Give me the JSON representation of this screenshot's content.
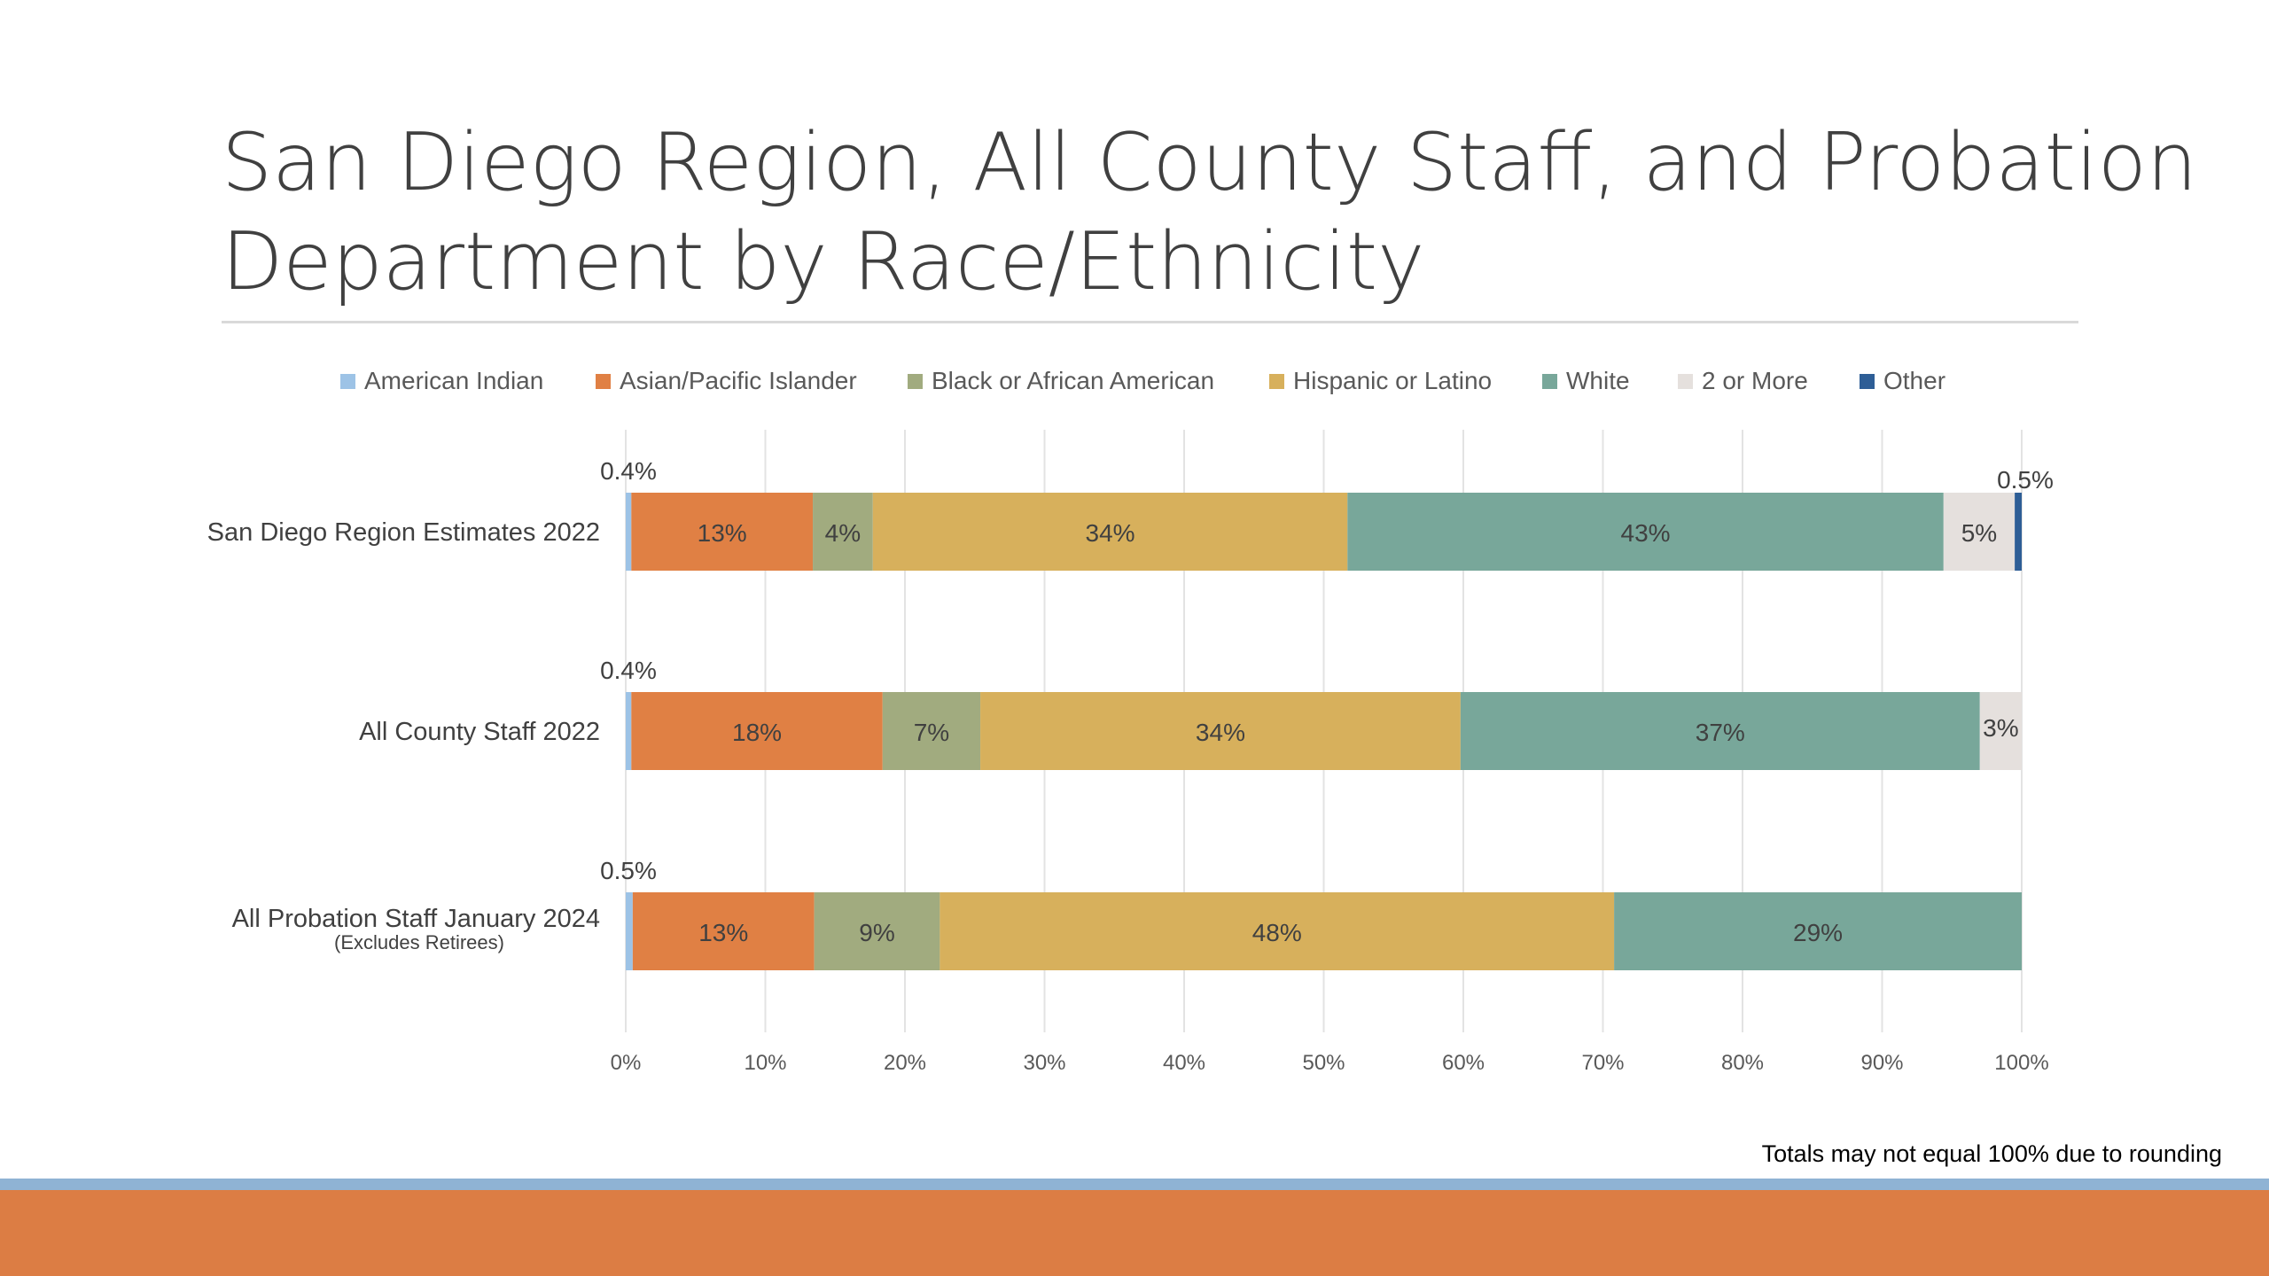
{
  "slide": {
    "title_line1": "San Diego Region, All County Staff, and Probation",
    "title_line2": "Department by Race/Ethnicity",
    "footnote": "Totals may not equal 100% due to rounding"
  },
  "theme": {
    "title_color": "#404040",
    "band_light": "#8fb3d4",
    "band_orange": "#dc7d44"
  },
  "chart_data": {
    "type": "bar",
    "orientation": "horizontal",
    "stacked": "percent",
    "title": "",
    "xlabel": "",
    "ylabel": "",
    "xlim": [
      0,
      100
    ],
    "x_ticks": [
      "0%",
      "10%",
      "20%",
      "30%",
      "40%",
      "50%",
      "60%",
      "70%",
      "80%",
      "90%",
      "100%"
    ],
    "grid": true,
    "legend_position": "top",
    "categories": [
      {
        "label": "San Diego Region Estimates 2022",
        "sublabel": ""
      },
      {
        "label": "All County Staff 2022",
        "sublabel": ""
      },
      {
        "label": "All Probation Staff January 2024",
        "sublabel": "(Excludes Retirees)"
      }
    ],
    "series": [
      {
        "name": "American Indian",
        "color": "#9dc3e6",
        "values": [
          0.4,
          0.4,
          0.5
        ],
        "labels": [
          "0.4%",
          "0.4%",
          "0.5%"
        ],
        "label_outside": true
      },
      {
        "name": "Asian/Pacific Islander",
        "color": "#e08044",
        "values": [
          13,
          18,
          13
        ],
        "labels": [
          "13%",
          "18%",
          "13%"
        ]
      },
      {
        "name": "Black or African American",
        "color": "#a1ab7f",
        "values": [
          4.3,
          7,
          9
        ],
        "labels": [
          "4%",
          "7%",
          "9%"
        ]
      },
      {
        "name": "Hispanic or Latino",
        "color": "#d7b05c",
        "values": [
          34,
          34.4,
          48.3
        ],
        "labels": [
          "34%",
          "34%",
          "48%"
        ]
      },
      {
        "name": "White",
        "color": "#78a79a",
        "values": [
          42.7,
          37.2,
          29.2
        ],
        "labels": [
          "43%",
          "37%",
          "29%"
        ]
      },
      {
        "name": "2 or More",
        "color": "#e5e0dd",
        "values": [
          5.1,
          3,
          0
        ],
        "labels": [
          "5%",
          "3%",
          ""
        ]
      },
      {
        "name": "Other",
        "color": "#2e5e96",
        "values": [
          0.5,
          0,
          0
        ],
        "labels": [
          "0.5%",
          "",
          ""
        ],
        "label_outside": true
      }
    ]
  }
}
